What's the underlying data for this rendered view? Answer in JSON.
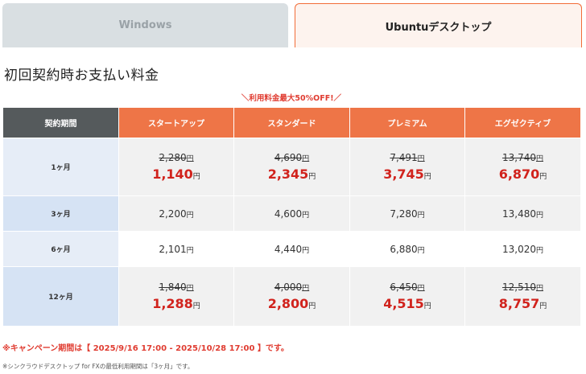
{
  "tabs": [
    {
      "label": "Windows",
      "active": false
    },
    {
      "label": "Ubuntuデスクトップ",
      "active": true
    }
  ],
  "title": "初回契約時お支払い料金",
  "promo": "＼利用料金最大50%OFF!／",
  "table": {
    "headers": [
      "契約期間",
      "スタートアップ",
      "スタンダード",
      "プレミアム",
      "エグゼクティブ"
    ],
    "yen": "円",
    "rows": [
      {
        "period": "1ヶ月",
        "discounted": true,
        "old": [
          "2,280",
          "4,690",
          "7,491",
          "13,740"
        ],
        "new": [
          "1,140",
          "2,345",
          "3,745",
          "6,870"
        ]
      },
      {
        "period": "3ヶ月",
        "discounted": false,
        "prices": [
          "2,200",
          "4,600",
          "7,280",
          "13,480"
        ]
      },
      {
        "period": "6ヶ月",
        "discounted": false,
        "prices": [
          "2,101",
          "4,440",
          "6,880",
          "13,020"
        ]
      },
      {
        "period": "12ヶ月",
        "discounted": true,
        "old": [
          "1,840",
          "4,000",
          "6,450",
          "12,510"
        ],
        "new": [
          "1,288",
          "2,800",
          "4,515",
          "8,757"
        ]
      }
    ]
  },
  "campaign": "※キャンペーン期間は【 2025/9/16 17:00 - 2025/10/28 17:00 】です。",
  "note": "※シンクラウドデスクトップ for FXの最低利用期間は「3ヶ月」です。",
  "colors": {
    "accent": "#ee7547",
    "header_dark": "#555a5c",
    "price_red": "#d1231d",
    "tab_inactive": "#d9dfe2",
    "period_bg": "#e6edf7"
  }
}
